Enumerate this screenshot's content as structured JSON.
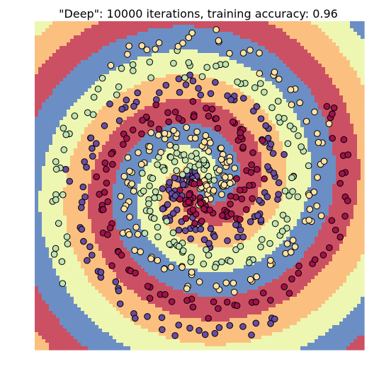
{
  "chart_data": {
    "type": "scatter",
    "title": "\"Deep\": 10000 iterations, training accuracy: 0.96",
    "xlabel": "",
    "ylabel": "",
    "xlim": [
      -1,
      1
    ],
    "ylim": [
      -1,
      1
    ],
    "axes_visible": false,
    "grid": false,
    "legend": "none",
    "colors": {
      "class_0_region": "#6b8fc5",
      "class_1_region": "#eef7b1",
      "class_2_region": "#fbc07f",
      "class_3_region": "#cc5063",
      "class_0_point": "#6a4ca0",
      "class_1_point": "#bfe3b2",
      "class_2_point": "#fde1a3",
      "class_3_point": "#a0124a",
      "point_edge": "#000000"
    },
    "spiral": {
      "classes": 4,
      "points_per_class": 160,
      "turns": 1.6,
      "max_radius": 0.95,
      "noise": 0.035,
      "class_phase_offsets_deg": [
        90,
        0,
        -90,
        180
      ]
    }
  }
}
